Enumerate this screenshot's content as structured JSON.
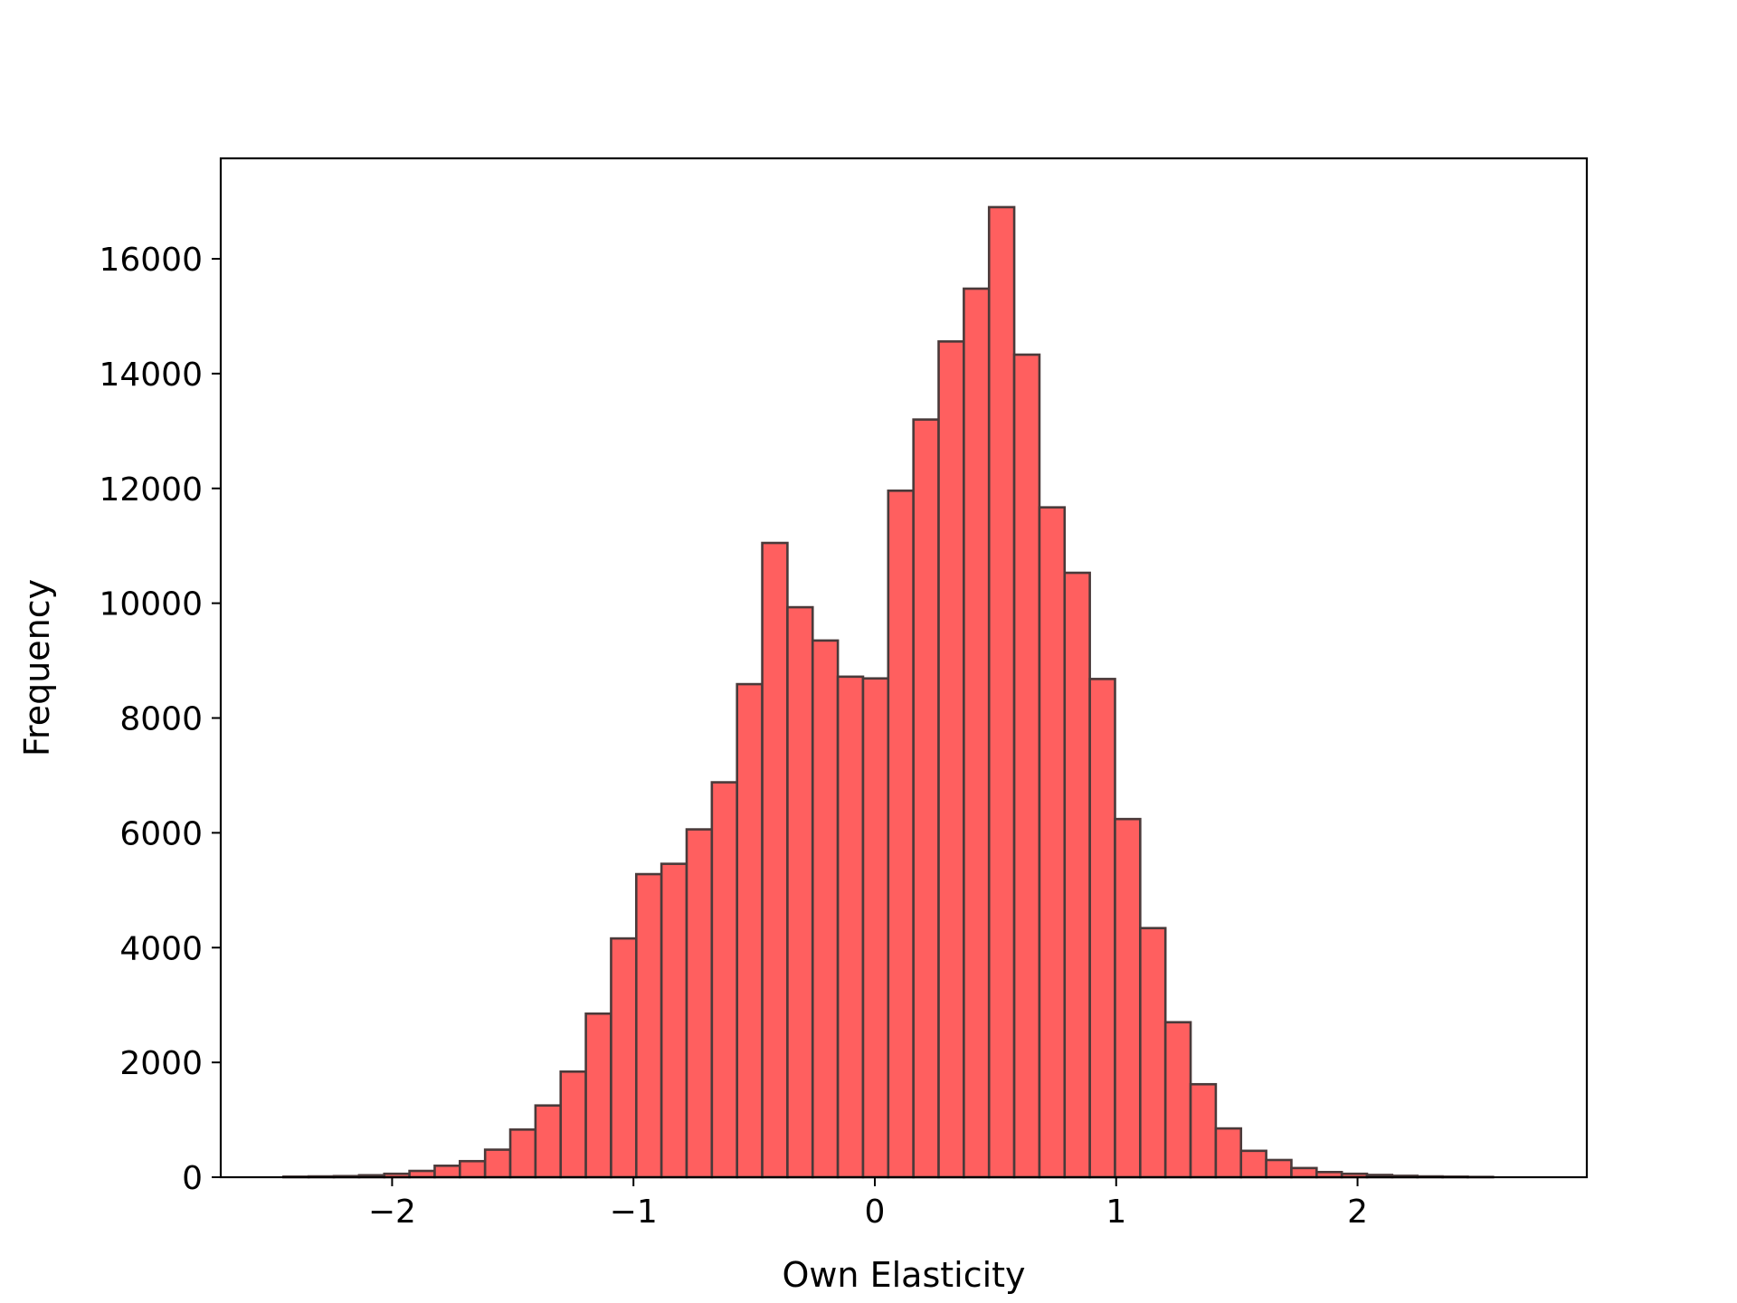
{
  "chart_data": {
    "type": "bar",
    "title": "",
    "xlabel": "Own Elasticity",
    "ylabel": "Frequency",
    "xlim": [
      -2.71,
      2.95
    ],
    "ylim": [
      0,
      17750
    ],
    "xticks": [
      {
        "value": -2,
        "label": "−2"
      },
      {
        "value": -1,
        "label": "−1"
      },
      {
        "value": 0,
        "label": "0"
      },
      {
        "value": 1,
        "label": "1"
      },
      {
        "value": 2,
        "label": "2"
      }
    ],
    "yticks": [
      {
        "value": 0,
        "label": "0"
      },
      {
        "value": 2000,
        "label": "2000"
      },
      {
        "value": 4000,
        "label": "4000"
      },
      {
        "value": 6000,
        "label": "6000"
      },
      {
        "value": 8000,
        "label": "8000"
      },
      {
        "value": 10000,
        "label": "10000"
      },
      {
        "value": 12000,
        "label": "12000"
      },
      {
        "value": 14000,
        "label": "14000"
      },
      {
        "value": 16000,
        "label": "16000"
      }
    ],
    "grid": false,
    "bins": {
      "start": -2.45,
      "width": 0.1044
    },
    "values": [
      10,
      15,
      20,
      35,
      60,
      110,
      200,
      280,
      480,
      830,
      1250,
      1840,
      2850,
      4160,
      5280,
      5460,
      6060,
      6880,
      8590,
      11050,
      9930,
      9350,
      8720,
      8690,
      11960,
      13200,
      14560,
      15480,
      16900,
      14330,
      11670,
      10530,
      8680,
      6240,
      4340,
      2700,
      1620,
      850,
      460,
      300,
      160,
      90,
      60,
      40,
      25,
      15,
      10,
      5
    ],
    "colors": {
      "bar_fill": "#ff5f5f",
      "bar_edge": "#4a3a3a",
      "axes": "#000000"
    }
  }
}
